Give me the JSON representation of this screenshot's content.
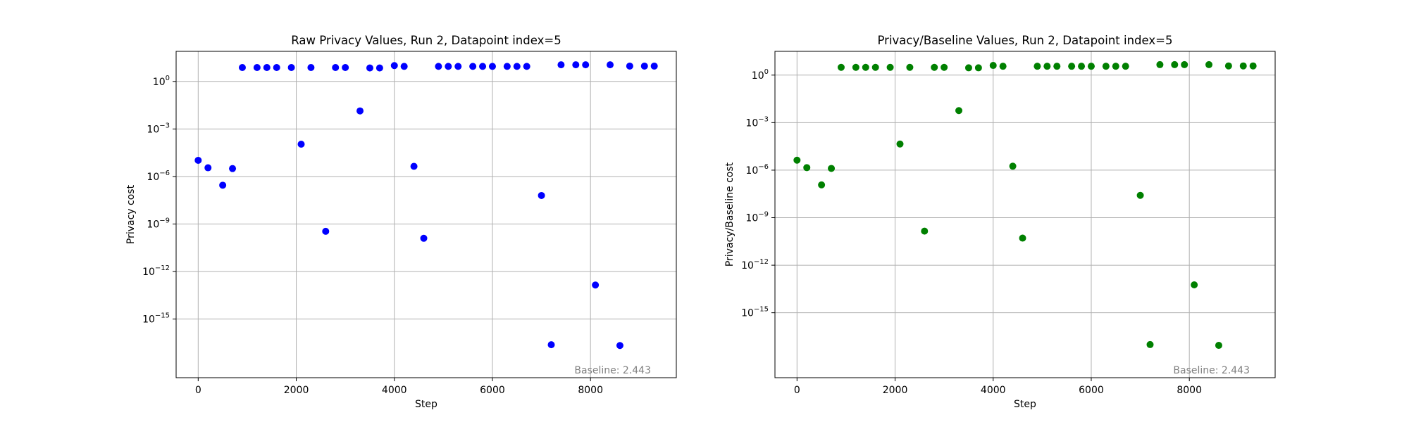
{
  "chart_data": [
    {
      "type": "scatter",
      "title": "Raw Privacy Values, Run 2, Datapoint index=5",
      "xlabel": "Step",
      "ylabel": "Privacy cost",
      "yscale": "log",
      "xlim": [
        -450,
        9750
      ],
      "ylim_exp": [
        -18.7,
        1.9
      ],
      "xticks": [
        0,
        2000,
        4000,
        6000,
        8000
      ],
      "xtick_labels": [
        "0",
        "2000",
        "4000",
        "6000",
        "8000"
      ],
      "yticks_exp": [
        0,
        -3,
        -6,
        -9,
        -12,
        -15
      ],
      "ytick_labels": [
        "10",
        "10",
        "10",
        "10",
        "10",
        "10"
      ],
      "ytick_sups": [
        "0",
        "−3",
        "−6",
        "−9",
        "−12",
        "−15"
      ],
      "grid": true,
      "color": "#0000ff",
      "annotation": "Baseline: 2.443",
      "x": [
        0,
        200,
        500,
        700,
        900,
        1200,
        1400,
        1600,
        1900,
        2100,
        2300,
        2600,
        2800,
        3000,
        3300,
        3500,
        3700,
        4000,
        4200,
        4400,
        4600,
        4900,
        5100,
        5300,
        5600,
        5800,
        6000,
        6300,
        6500,
        6700,
        7000,
        7200,
        7400,
        7700,
        7900,
        8100,
        8400,
        8600,
        8800,
        9100,
        9300
      ],
      "y_exp": [
        -4.98,
        -5.45,
        -6.55,
        -5.5,
        0.88,
        0.88,
        0.88,
        0.88,
        0.88,
        -3.96,
        0.88,
        -9.46,
        0.88,
        0.88,
        -1.86,
        0.85,
        0.85,
        1.0,
        0.95,
        -5.36,
        -9.9,
        0.95,
        0.95,
        0.95,
        0.95,
        0.95,
        0.95,
        0.95,
        0.95,
        0.95,
        -7.2,
        -16.62,
        1.05,
        1.05,
        1.05,
        -12.85,
        1.05,
        -16.67,
        0.97,
        0.97,
        0.97
      ]
    },
    {
      "type": "scatter",
      "title": "Privacy/Baseline Values, Run 2, Datapoint index=5",
      "xlabel": "Step",
      "ylabel": "Privacy/Baseline cost",
      "yscale": "log",
      "xlim": [
        -450,
        9750
      ],
      "ylim_exp": [
        -19.1,
        1.5
      ],
      "xticks": [
        0,
        2000,
        4000,
        6000,
        8000
      ],
      "xtick_labels": [
        "0",
        "2000",
        "4000",
        "6000",
        "8000"
      ],
      "yticks_exp": [
        0,
        -3,
        -6,
        -9,
        -12,
        -15
      ],
      "ytick_labels": [
        "10",
        "10",
        "10",
        "10",
        "10",
        "10"
      ],
      "ytick_sups": [
        "0",
        "−3",
        "−6",
        "−9",
        "−12",
        "−15"
      ],
      "grid": true,
      "color": "#008000",
      "annotation": "Baseline: 2.443",
      "x": [
        0,
        200,
        500,
        700,
        900,
        1200,
        1400,
        1600,
        1900,
        2100,
        2300,
        2600,
        2800,
        3000,
        3300,
        3500,
        3700,
        4000,
        4200,
        4400,
        4600,
        4900,
        5100,
        5300,
        5600,
        5800,
        6000,
        6300,
        6500,
        6700,
        7000,
        7200,
        7400,
        7700,
        7900,
        8100,
        8400,
        8600,
        8800,
        9100,
        9300
      ],
      "y_exp": [
        -5.37,
        -5.84,
        -6.93,
        -5.89,
        0.49,
        0.49,
        0.49,
        0.49,
        0.49,
        -4.35,
        0.49,
        -9.85,
        0.49,
        0.49,
        -2.24,
        0.46,
        0.46,
        0.61,
        0.56,
        -5.75,
        -10.29,
        0.56,
        0.56,
        0.56,
        0.56,
        0.56,
        0.56,
        0.56,
        0.56,
        0.56,
        -7.59,
        -17.01,
        0.66,
        0.66,
        0.66,
        -13.24,
        0.66,
        -17.06,
        0.58,
        0.58,
        0.58
      ]
    }
  ]
}
